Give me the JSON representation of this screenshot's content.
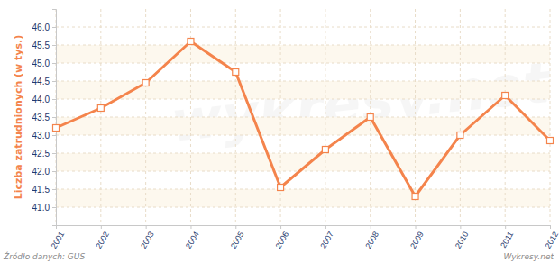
{
  "chart_data": {
    "type": "line",
    "y_label": "Liczba zatrudnionych (w tys.)",
    "annotations": [
      "Źródło danych: GUS",
      "Wykresy.net",
      "wykresy.net"
    ],
    "categories": [
      "2001",
      "2002",
      "2003",
      "2004",
      "2005",
      "2006",
      "2007",
      "2008",
      "2009",
      "2010",
      "2011",
      "2012"
    ],
    "values": [
      43.2,
      43.75,
      44.45,
      45.6,
      44.75,
      41.55,
      42.6,
      43.5,
      41.3,
      43.0,
      44.1,
      42.85
    ],
    "color": "#f4844c",
    "marker": "square",
    "ylim": [
      40.5,
      46.5
    ],
    "yticks": [
      {
        "value": 41,
        "label": "41.0"
      },
      41.5,
      {
        "value": 42,
        "label": "42.0"
      },
      42.5,
      {
        "value": 43,
        "label": "43.0"
      },
      43.5,
      {
        "value": 44,
        "label": "44.0"
      },
      44.5,
      {
        "value": 45,
        "label": "45.0"
      },
      45.5,
      {
        "value": 46,
        "label": "46.0"
      }
    ],
    "grid": true
  }
}
